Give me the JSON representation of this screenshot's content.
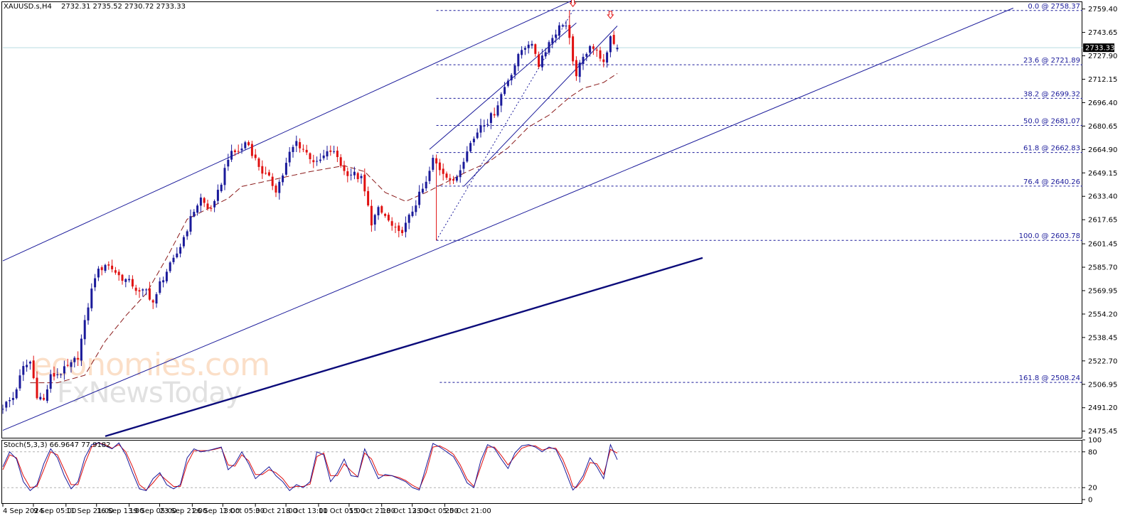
{
  "header": {
    "symbol": "XAUUSD.s,H4",
    "ohlc": "2732.31 2735.52 2730.72 2733.33"
  },
  "watermark": {
    "line1": "economies.com",
    "line2": "FxNewsToday"
  },
  "colors": {
    "bull": "#1a1a9a",
    "bear": "#e01010",
    "ma": "#8b1a1a",
    "channel": "#1a1a9a",
    "trend": "#0b0b7a",
    "fib": "#1a1a9a",
    "stoch_main": "#1a1a9a",
    "stoch_signal": "#e01010",
    "bid_line": "#b8dce0"
  },
  "chart_data": [
    {
      "type": "candlestick",
      "title": "XAUUSD.s,H4",
      "price_axis_ticks": [
        "2759.40",
        "2743.65",
        "2727.90",
        "2712.15",
        "2696.40",
        "2680.65",
        "2664.90",
        "2649.15",
        "2633.40",
        "2617.65",
        "2601.45",
        "2585.70",
        "2569.95",
        "2554.20",
        "2538.45",
        "2522.70",
        "2506.95",
        "2491.20",
        "2475.45"
      ],
      "time_axis_ticks": [
        "4 Sep 2024",
        "9 Sep 05:00",
        "11 Sep 21:00",
        "16 Sep 13:00",
        "19 Sep 05:00",
        "23 Sep 21:00",
        "26 Sep 13:00",
        "1 Oct 05:00",
        "3 Oct 21:00",
        "8 Oct 13:00",
        "11 Oct 05:00",
        "15 Oct 21:00",
        "18 Oct 13:00",
        "23 Oct 05:00",
        "25 Oct 21:00"
      ],
      "ylim": [
        2471,
        2764
      ],
      "current_price": "2733.33",
      "last_candle": {
        "open": 2732.31,
        "high": 2735.52,
        "low": 2730.72,
        "close": 2733.33
      },
      "swing_low": 2603.78,
      "swing_high": 2758.37,
      "fibonacci": [
        {
          "label": "0.0 @ 2758.37",
          "level": 2758.37
        },
        {
          "label": "23.6 @ 2721.89",
          "level": 2721.89
        },
        {
          "label": "38.2 @ 2699.32",
          "level": 2699.32
        },
        {
          "label": "50.0 @ 2681.07",
          "level": 2681.07
        },
        {
          "label": "61.8 @ 2662.83",
          "level": 2662.83
        },
        {
          "label": "76.4 @ 2640.26",
          "level": 2640.26
        },
        {
          "label": "100.0 @ 2603.78",
          "level": 2603.78
        },
        {
          "label": "161.8 @ 2508.24",
          "level": 2508.24
        }
      ],
      "close_path": [
        [
          0,
          2492
        ],
        [
          3,
          2498
        ],
        [
          6,
          2518
        ],
        [
          8,
          2522
        ],
        [
          10,
          2500
        ],
        [
          12,
          2496
        ],
        [
          14,
          2512
        ],
        [
          17,
          2515
        ],
        [
          20,
          2520
        ],
        [
          22,
          2526
        ],
        [
          24,
          2548
        ],
        [
          25,
          2560
        ],
        [
          27,
          2580
        ],
        [
          30,
          2588
        ],
        [
          32,
          2585
        ],
        [
          34,
          2580
        ],
        [
          36,
          2577
        ],
        [
          38,
          2574
        ],
        [
          40,
          2568
        ],
        [
          42,
          2570
        ],
        [
          44,
          2562
        ],
        [
          45,
          2566
        ],
        [
          46,
          2575
        ],
        [
          48,
          2583
        ],
        [
          50,
          2590
        ],
        [
          52,
          2600
        ],
        [
          54,
          2612
        ],
        [
          56,
          2624
        ],
        [
          58,
          2632
        ],
        [
          60,
          2625
        ],
        [
          62,
          2628
        ],
        [
          64,
          2643
        ],
        [
          66,
          2660
        ],
        [
          68,
          2663
        ],
        [
          70,
          2665
        ],
        [
          71,
          2670
        ],
        [
          72,
          2668
        ],
        [
          74,
          2658
        ],
        [
          76,
          2650
        ],
        [
          78,
          2645
        ],
        [
          80,
          2638
        ],
        [
          82,
          2648
        ],
        [
          84,
          2662
        ],
        [
          86,
          2670
        ],
        [
          88,
          2665
        ],
        [
          90,
          2660
        ],
        [
          92,
          2655
        ],
        [
          94,
          2660
        ],
        [
          96,
          2664
        ],
        [
          98,
          2660
        ],
        [
          100,
          2650
        ],
        [
          103,
          2648
        ],
        [
          105,
          2645
        ],
        [
          106,
          2636
        ],
        [
          108,
          2616
        ],
        [
          110,
          2624
        ],
        [
          112,
          2620
        ],
        [
          114,
          2613
        ],
        [
          116,
          2608
        ],
        [
          118,
          2614
        ],
        [
          120,
          2624
        ],
        [
          122,
          2634
        ],
        [
          124,
          2642
        ],
        [
          126,
          2658
        ],
        [
          128,
          2652
        ],
        [
          130,
          2648
        ],
        [
          132,
          2642
        ],
        [
          134,
          2652
        ],
        [
          136,
          2666
        ],
        [
          138,
          2672
        ],
        [
          140,
          2682
        ],
        [
          142,
          2684
        ],
        [
          144,
          2690
        ],
        [
          146,
          2702
        ],
        [
          148,
          2712
        ],
        [
          150,
          2722
        ],
        [
          152,
          2732
        ],
        [
          154,
          2737
        ],
        [
          156,
          2730
        ],
        [
          157,
          2722
        ],
        [
          158,
          2728
        ],
        [
          160,
          2737
        ],
        [
          162,
          2744
        ],
        [
          164,
          2750
        ],
        [
          165,
          2748
        ],
        [
          166,
          2738
        ],
        [
          167,
          2722
        ],
        [
          168,
          2716
        ],
        [
          170,
          2726
        ],
        [
          172,
          2736
        ],
        [
          174,
          2730
        ],
        [
          175,
          2728
        ],
        [
          176,
          2722
        ],
        [
          177,
          2728
        ],
        [
          178,
          2742
        ],
        [
          179,
          2736
        ],
        [
          180,
          2733.33
        ]
      ],
      "ma_path": [
        [
          8,
          2508
        ],
        [
          16,
          2508
        ],
        [
          24,
          2513
        ],
        [
          30,
          2536
        ],
        [
          36,
          2553
        ],
        [
          42,
          2568
        ],
        [
          48,
          2592
        ],
        [
          54,
          2618
        ],
        [
          60,
          2625
        ],
        [
          66,
          2632
        ],
        [
          70,
          2640
        ],
        [
          76,
          2643
        ],
        [
          82,
          2646
        ],
        [
          90,
          2650
        ],
        [
          100,
          2654
        ],
        [
          106,
          2650
        ],
        [
          112,
          2636
        ],
        [
          118,
          2630
        ],
        [
          124,
          2636
        ],
        [
          130,
          2643
        ],
        [
          136,
          2650
        ],
        [
          142,
          2656
        ],
        [
          148,
          2666
        ],
        [
          154,
          2680
        ],
        [
          160,
          2688
        ],
        [
          166,
          2700
        ],
        [
          170,
          2706
        ],
        [
          176,
          2710
        ],
        [
          180,
          2716
        ]
      ],
      "channels": [
        {
          "name": "main-channel-upper",
          "points": [
            [
              0,
              2590
            ],
            [
              200,
              2800
            ]
          ]
        },
        {
          "name": "main-channel-lower",
          "points": [
            [
              0,
              2476
            ],
            [
              296,
              2760
            ]
          ]
        },
        {
          "name": "steep-channel-upper",
          "points": [
            [
              125,
              2665
            ],
            [
              168,
              2750
            ]
          ]
        },
        {
          "name": "steep-channel-lower",
          "points": [
            [
              135,
              2640
            ],
            [
              180,
              2748
            ]
          ]
        },
        {
          "name": "long-trendline",
          "points": [
            [
              30,
              2472
            ],
            [
              205,
              2592
            ]
          ]
        }
      ],
      "markers": [
        {
          "name": "top-arrow-1",
          "x": 167,
          "price": 2762
        },
        {
          "name": "top-arrow-2",
          "x": 178,
          "price": 2754
        }
      ]
    },
    {
      "type": "line",
      "title": "Stoch(5,3,3) 66.9647 77.9182",
      "ylim": [
        0,
        100
      ],
      "levels": [
        20,
        80
      ],
      "axis_ticks": [
        "100",
        "80",
        "20",
        "0"
      ],
      "series": [
        {
          "name": "Main",
          "value": 66.9647
        },
        {
          "name": "Signal",
          "value": 77.9182
        }
      ],
      "main_path": [
        [
          0,
          55
        ],
        [
          2,
          80
        ],
        [
          4,
          68
        ],
        [
          6,
          30
        ],
        [
          8,
          15
        ],
        [
          10,
          25
        ],
        [
          12,
          60
        ],
        [
          14,
          85
        ],
        [
          16,
          70
        ],
        [
          18,
          40
        ],
        [
          20,
          18
        ],
        [
          22,
          30
        ],
        [
          24,
          70
        ],
        [
          26,
          92
        ],
        [
          28,
          95
        ],
        [
          30,
          90
        ],
        [
          32,
          85
        ],
        [
          34,
          95
        ],
        [
          36,
          75
        ],
        [
          38,
          45
        ],
        [
          40,
          18
        ],
        [
          42,
          15
        ],
        [
          44,
          35
        ],
        [
          46,
          45
        ],
        [
          48,
          25
        ],
        [
          50,
          18
        ],
        [
          52,
          25
        ],
        [
          54,
          70
        ],
        [
          56,
          85
        ],
        [
          58,
          80
        ],
        [
          60,
          82
        ],
        [
          62,
          85
        ],
        [
          64,
          88
        ],
        [
          66,
          50
        ],
        [
          68,
          60
        ],
        [
          70,
          80
        ],
        [
          72,
          60
        ],
        [
          74,
          35
        ],
        [
          76,
          45
        ],
        [
          78,
          55
        ],
        [
          80,
          40
        ],
        [
          82,
          30
        ],
        [
          84,
          15
        ],
        [
          86,
          25
        ],
        [
          88,
          20
        ],
        [
          90,
          30
        ],
        [
          92,
          80
        ],
        [
          94,
          75
        ],
        [
          96,
          30
        ],
        [
          98,
          45
        ],
        [
          100,
          68
        ],
        [
          102,
          40
        ],
        [
          104,
          38
        ],
        [
          106,
          85
        ],
        [
          108,
          60
        ],
        [
          110,
          35
        ],
        [
          112,
          42
        ],
        [
          114,
          40
        ],
        [
          116,
          35
        ],
        [
          118,
          30
        ],
        [
          120,
          20
        ],
        [
          122,
          16
        ],
        [
          124,
          55
        ],
        [
          126,
          94
        ],
        [
          128,
          88
        ],
        [
          130,
          80
        ],
        [
          132,
          72
        ],
        [
          134,
          52
        ],
        [
          136,
          28
        ],
        [
          138,
          20
        ],
        [
          140,
          65
        ],
        [
          142,
          92
        ],
        [
          144,
          86
        ],
        [
          146,
          68
        ],
        [
          148,
          52
        ],
        [
          150,
          78
        ],
        [
          152,
          90
        ],
        [
          154,
          92
        ],
        [
          156,
          88
        ],
        [
          158,
          80
        ],
        [
          160,
          88
        ],
        [
          162,
          84
        ],
        [
          164,
          60
        ],
        [
          166,
          30
        ],
        [
          167,
          16
        ],
        [
          168,
          22
        ],
        [
          170,
          40
        ],
        [
          172,
          70
        ],
        [
          174,
          55
        ],
        [
          176,
          35
        ],
        [
          178,
          92
        ],
        [
          180,
          66.96
        ]
      ],
      "signal_path": [
        [
          0,
          50
        ],
        [
          2,
          75
        ],
        [
          4,
          70
        ],
        [
          6,
          40
        ],
        [
          8,
          20
        ],
        [
          10,
          22
        ],
        [
          12,
          50
        ],
        [
          14,
          80
        ],
        [
          16,
          75
        ],
        [
          18,
          50
        ],
        [
          20,
          25
        ],
        [
          22,
          25
        ],
        [
          24,
          60
        ],
        [
          26,
          88
        ],
        [
          28,
          95
        ],
        [
          30,
          92
        ],
        [
          32,
          86
        ],
        [
          34,
          92
        ],
        [
          36,
          80
        ],
        [
          38,
          55
        ],
        [
          40,
          25
        ],
        [
          42,
          16
        ],
        [
          44,
          28
        ],
        [
          46,
          42
        ],
        [
          48,
          32
        ],
        [
          50,
          22
        ],
        [
          52,
          22
        ],
        [
          54,
          60
        ],
        [
          56,
          82
        ],
        [
          58,
          82
        ],
        [
          60,
          82
        ],
        [
          62,
          84
        ],
        [
          64,
          87
        ],
        [
          66,
          58
        ],
        [
          68,
          56
        ],
        [
          70,
          75
        ],
        [
          72,
          65
        ],
        [
          74,
          42
        ],
        [
          76,
          42
        ],
        [
          78,
          50
        ],
        [
          80,
          45
        ],
        [
          82,
          35
        ],
        [
          84,
          20
        ],
        [
          86,
          22
        ],
        [
          88,
          22
        ],
        [
          90,
          26
        ],
        [
          92,
          72
        ],
        [
          94,
          78
        ],
        [
          96,
          40
        ],
        [
          98,
          40
        ],
        [
          100,
          60
        ],
        [
          102,
          48
        ],
        [
          104,
          38
        ],
        [
          106,
          78
        ],
        [
          108,
          68
        ],
        [
          110,
          42
        ],
        [
          112,
          40
        ],
        [
          114,
          40
        ],
        [
          116,
          37
        ],
        [
          118,
          32
        ],
        [
          120,
          24
        ],
        [
          122,
          18
        ],
        [
          124,
          45
        ],
        [
          126,
          88
        ],
        [
          128,
          90
        ],
        [
          130,
          84
        ],
        [
          132,
          76
        ],
        [
          134,
          58
        ],
        [
          136,
          34
        ],
        [
          138,
          22
        ],
        [
          140,
          55
        ],
        [
          142,
          88
        ],
        [
          144,
          88
        ],
        [
          146,
          74
        ],
        [
          148,
          58
        ],
        [
          150,
          72
        ],
        [
          152,
          86
        ],
        [
          154,
          90
        ],
        [
          156,
          90
        ],
        [
          158,
          83
        ],
        [
          160,
          86
        ],
        [
          162,
          86
        ],
        [
          164,
          68
        ],
        [
          166,
          40
        ],
        [
          167,
          22
        ],
        [
          168,
          20
        ],
        [
          170,
          34
        ],
        [
          172,
          62
        ],
        [
          174,
          60
        ],
        [
          176,
          42
        ],
        [
          178,
          84
        ],
        [
          180,
          77.92
        ]
      ]
    }
  ]
}
